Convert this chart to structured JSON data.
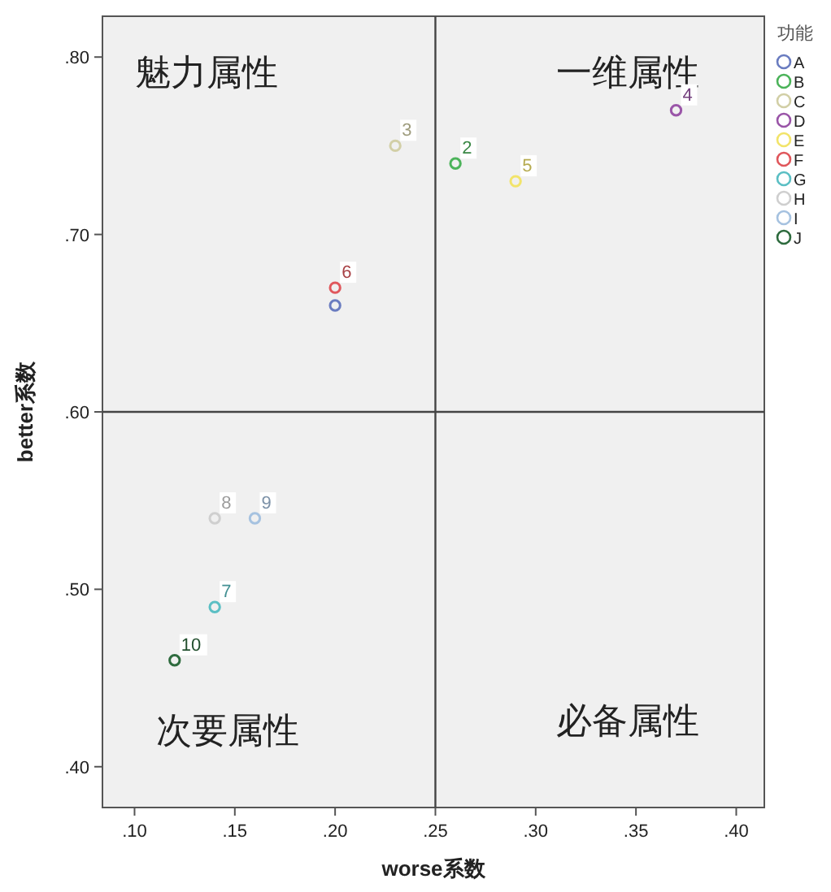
{
  "chart_data": {
    "type": "scatter",
    "xlabel": "worse系数",
    "ylabel": "better系数",
    "legend_title": "功能",
    "legend": "right",
    "grid": false,
    "marker": "circle",
    "xlim": [
      0.084,
      0.414
    ],
    "ylim": [
      0.377,
      0.823
    ],
    "xticks": [
      {
        "value": 0.1,
        "label": ".10"
      },
      {
        "value": 0.15,
        "label": ".15"
      },
      {
        "value": 0.2,
        "label": ".20"
      },
      {
        "value": 0.25,
        "label": ".25"
      },
      {
        "value": 0.3,
        "label": ".30"
      },
      {
        "value": 0.35,
        "label": ".35"
      },
      {
        "value": 0.4,
        "label": ".40"
      }
    ],
    "yticks": [
      {
        "value": 0.4,
        "label": ".40"
      },
      {
        "value": 0.5,
        "label": ".50"
      },
      {
        "value": 0.6,
        "label": ".60"
      },
      {
        "value": 0.7,
        "label": ".70"
      },
      {
        "value": 0.8,
        "label": ".80"
      }
    ],
    "ref_lines": [
      {
        "axis": "x",
        "value": 0.25,
        "color": "#444444"
      },
      {
        "axis": "y",
        "value": 0.6,
        "color": "#444444"
      }
    ],
    "series": [
      {
        "name": "A",
        "color": "#6a7cc0",
        "x": [
          0.2
        ],
        "values": [
          0.66
        ]
      },
      {
        "name": "B",
        "color": "#4cb35a",
        "x": [
          0.26
        ],
        "values": [
          0.74
        ]
      },
      {
        "name": "C",
        "color": "#d2cfa6",
        "x": [
          0.23
        ],
        "values": [
          0.75
        ]
      },
      {
        "name": "D",
        "color": "#9a55a8",
        "x": [
          0.37
        ],
        "values": [
          0.77
        ]
      },
      {
        "name": "E",
        "color": "#f2e46a",
        "x": [
          0.29
        ],
        "values": [
          0.73
        ]
      },
      {
        "name": "F",
        "color": "#e0575c",
        "x": [
          0.2
        ],
        "values": [
          0.67
        ]
      },
      {
        "name": "G",
        "color": "#5bbfc4",
        "x": [
          0.14
        ],
        "values": [
          0.49
        ]
      },
      {
        "name": "H",
        "color": "#cfcfcf",
        "x": [
          0.14
        ],
        "values": [
          0.54
        ]
      },
      {
        "name": "I",
        "color": "#a6c2e0",
        "x": [
          0.16
        ],
        "values": [
          0.54
        ]
      },
      {
        "name": "J",
        "color": "#2e6b3e",
        "x": [
          0.12
        ],
        "values": [
          0.46
        ]
      }
    ],
    "annotations": [
      "魅力属性",
      "一维属性",
      "次要属性",
      "必备属性",
      {
        "text": "2",
        "x": 0.26,
        "y": 0.74
      },
      {
        "text": "3",
        "x": 0.23,
        "y": 0.75
      },
      {
        "text": "4",
        "x": 0.37,
        "y": 0.77
      },
      {
        "text": "5",
        "x": 0.29,
        "y": 0.73
      },
      {
        "text": "6",
        "x": 0.2,
        "y": 0.67
      },
      {
        "text": "7",
        "x": 0.14,
        "y": 0.49
      },
      {
        "text": "8",
        "x": 0.14,
        "y": 0.54
      },
      {
        "text": "9",
        "x": 0.16,
        "y": 0.54
      },
      {
        "text": "10",
        "x": 0.12,
        "y": 0.46
      }
    ]
  }
}
